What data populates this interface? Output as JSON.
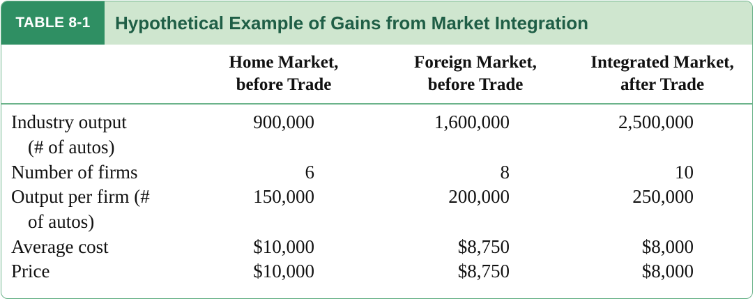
{
  "table": {
    "tag": "TABLE 8-1",
    "title": "Hypothetical Example of Gains from Market Integration",
    "columns": [
      {
        "line1": "Home Market,",
        "line2": "before Trade"
      },
      {
        "line1": "Foreign Market,",
        "line2": "before Trade"
      },
      {
        "line1": "Integrated Market,",
        "line2": "after Trade"
      }
    ],
    "rows": [
      {
        "label1": "Industry output",
        "label2": "(# of autos)",
        "values": [
          "900,000",
          "1,600,000",
          "2,500,000"
        ]
      },
      {
        "label1": "Number of firms",
        "label2": "",
        "values": [
          "6",
          "8",
          "10"
        ]
      },
      {
        "label1": "Output per firm (#",
        "label2": "of autos)",
        "values": [
          "150,000",
          "200,000",
          "250,000"
        ]
      },
      {
        "label1": "Average cost",
        "label2": "",
        "values": [
          "$10,000",
          "$8,750",
          "$8,000"
        ]
      },
      {
        "label1": "Price",
        "label2": "",
        "values": [
          "$10,000",
          "$8,750",
          "$8,000"
        ]
      }
    ]
  },
  "colors": {
    "tag_bg": "#2f8f63",
    "title_bar_bg": "#cfe6cf",
    "title_text": "#1f5e46",
    "border": "#6bb38a"
  }
}
